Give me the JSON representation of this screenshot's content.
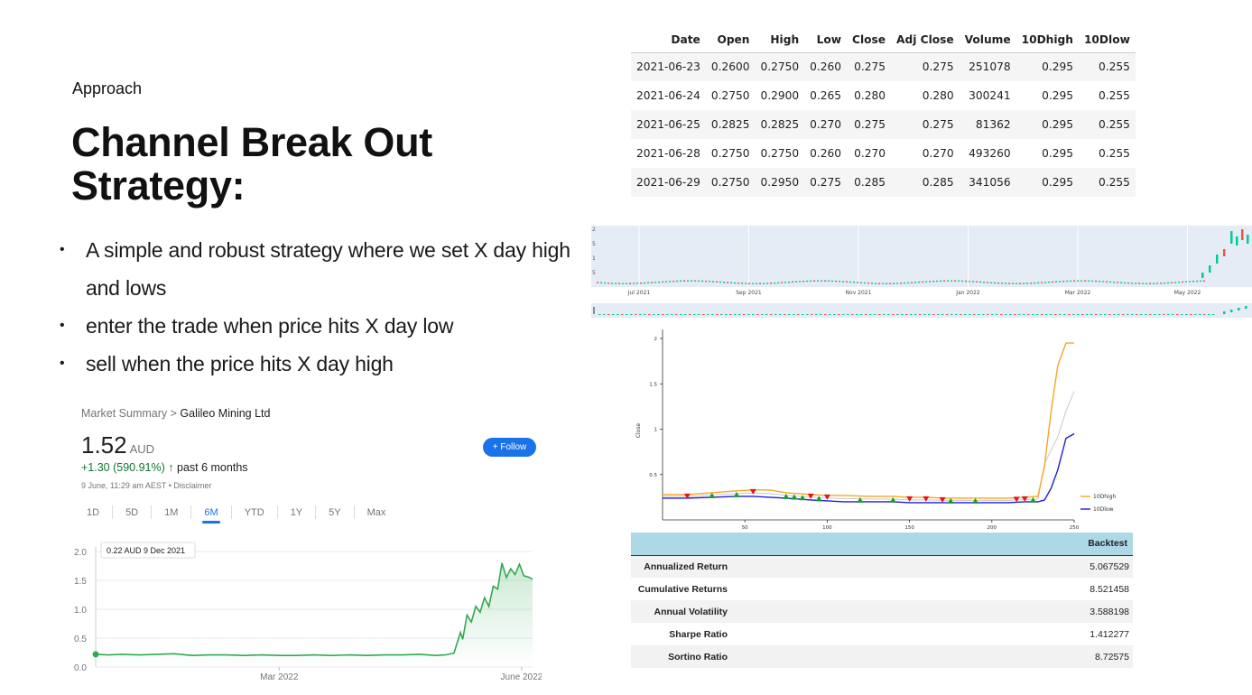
{
  "slide": {
    "label": "Approach",
    "title_line1": "Channel Break Out",
    "title_line2": "Strategy:",
    "bullets": [
      "A simple and robust strategy where we set X day high and lows",
      "enter the trade when price hits X day low",
      "sell when the price hits X day high"
    ]
  },
  "market_summary": {
    "breadcrumb_prefix": "Market Summary >",
    "company": "Galileo Mining Ltd",
    "price": "1.52",
    "currency": "AUD",
    "change_text": "+1.30 (590.91%)",
    "change_arrow": "↑",
    "period": "past 6 months",
    "timestamp": "9 June, 11:29 am AEST • Disclaimer",
    "follow_label": "+ Follow",
    "tabs": [
      "1D",
      "5D",
      "1M",
      "6M",
      "YTD",
      "1Y",
      "5Y",
      "Max"
    ],
    "active_tab": "6M",
    "tooltip": "0.22 AUD  9 Dec 2021",
    "line_color": "#34a853"
  },
  "chart_data": [
    {
      "type": "area",
      "title": "",
      "y_ticks": [
        "2.0",
        "1.5",
        "1.0",
        "0.5",
        "0.0"
      ],
      "ylim": [
        0,
        2.0
      ],
      "x_ticks": [
        {
          "label": "Mar 2022",
          "at": 0.42
        },
        {
          "label": "June 2022",
          "at": 0.975
        }
      ],
      "x": [
        0,
        0.03,
        0.06,
        0.1,
        0.14,
        0.18,
        0.22,
        0.26,
        0.3,
        0.34,
        0.38,
        0.42,
        0.46,
        0.5,
        0.54,
        0.58,
        0.62,
        0.66,
        0.7,
        0.74,
        0.78,
        0.8,
        0.82,
        0.835,
        0.84,
        0.85,
        0.86,
        0.87,
        0.88,
        0.89,
        0.9,
        0.91,
        0.92,
        0.93,
        0.94,
        0.95,
        0.96,
        0.97,
        0.98,
        0.99,
        1.0
      ],
      "values": [
        0.22,
        0.21,
        0.22,
        0.21,
        0.22,
        0.23,
        0.2,
        0.21,
        0.21,
        0.2,
        0.21,
        0.2,
        0.2,
        0.21,
        0.2,
        0.21,
        0.2,
        0.21,
        0.21,
        0.22,
        0.2,
        0.21,
        0.24,
        0.6,
        0.48,
        0.9,
        0.78,
        1.05,
        0.95,
        1.2,
        1.05,
        1.4,
        1.35,
        1.8,
        1.55,
        1.7,
        1.6,
        1.78,
        1.58,
        1.56,
        1.52
      ]
    },
    {
      "type": "line",
      "ylabel": "Close",
      "ylim": [
        0,
        2.1
      ],
      "xlim": [
        0,
        250
      ],
      "x_ticks": [
        50,
        100,
        150,
        200,
        250
      ],
      "y_ticks": [
        0.5,
        1,
        1.5,
        2
      ],
      "series": [
        {
          "name": "10Dhigh",
          "color": "#f5a623",
          "x": [
            0,
            15,
            30,
            45,
            55,
            65,
            75,
            90,
            100,
            110,
            125,
            140,
            150,
            160,
            170,
            180,
            190,
            200,
            210,
            220,
            228,
            232,
            236,
            240,
            245,
            250
          ],
          "values": [
            0.28,
            0.28,
            0.3,
            0.32,
            0.33,
            0.33,
            0.3,
            0.28,
            0.27,
            0.27,
            0.26,
            0.26,
            0.25,
            0.25,
            0.24,
            0.24,
            0.24,
            0.24,
            0.24,
            0.25,
            0.26,
            0.6,
            1.2,
            1.7,
            1.95,
            1.95
          ]
        },
        {
          "name": "10Dlow",
          "color": "#1f1fd6",
          "x": [
            0,
            15,
            30,
            45,
            55,
            65,
            75,
            90,
            100,
            110,
            125,
            140,
            150,
            160,
            170,
            180,
            190,
            200,
            210,
            220,
            228,
            232,
            236,
            240,
            245,
            250
          ],
          "values": [
            0.24,
            0.24,
            0.25,
            0.26,
            0.26,
            0.25,
            0.24,
            0.22,
            0.21,
            0.2,
            0.2,
            0.2,
            0.19,
            0.19,
            0.19,
            0.19,
            0.19,
            0.19,
            0.19,
            0.2,
            0.2,
            0.22,
            0.35,
            0.55,
            0.9,
            0.95
          ]
        }
      ],
      "buy_x": [
        30,
        45,
        75,
        80,
        85,
        95,
        120,
        140,
        175,
        190,
        225
      ],
      "sell_x": [
        15,
        55,
        90,
        100,
        150,
        160,
        170,
        215,
        220
      ]
    }
  ],
  "data_table": {
    "headers": [
      "Date",
      "Open",
      "High",
      "Low",
      "Close",
      "Adj Close",
      "Volume",
      "10Dhigh",
      "10Dlow"
    ],
    "rows": [
      [
        "2021-06-23",
        "0.2600",
        "0.2750",
        "0.260",
        "0.275",
        "0.275",
        "251078",
        "0.295",
        "0.255"
      ],
      [
        "2021-06-24",
        "0.2750",
        "0.2900",
        "0.265",
        "0.280",
        "0.280",
        "300241",
        "0.295",
        "0.255"
      ],
      [
        "2021-06-25",
        "0.2825",
        "0.2825",
        "0.270",
        "0.275",
        "0.275",
        "81362",
        "0.295",
        "0.255"
      ],
      [
        "2021-06-28",
        "0.2750",
        "0.2750",
        "0.260",
        "0.270",
        "0.270",
        "493260",
        "0.295",
        "0.255"
      ],
      [
        "2021-06-29",
        "0.2750",
        "0.2950",
        "0.275",
        "0.285",
        "0.285",
        "341056",
        "0.295",
        "0.255"
      ]
    ]
  },
  "candle_strip": {
    "x_labels": [
      "Jul 2021",
      "Sep 2021",
      "Nov 2021",
      "Jan 2022",
      "Mar 2022",
      "May 2022"
    ],
    "y_labels": [
      "2",
      "5",
      "1",
      "5"
    ]
  },
  "backtest": {
    "header": "Backtest",
    "rows": [
      {
        "label": "Annualized Return",
        "value": "5.067529"
      },
      {
        "label": "Cumulative Returns",
        "value": "8.521458"
      },
      {
        "label": "Annual Volatility",
        "value": "3.588198"
      },
      {
        "label": "Sharpe Ratio",
        "value": "1.412277"
      },
      {
        "label": "Sortino Ratio",
        "value": "8.72575"
      }
    ]
  }
}
